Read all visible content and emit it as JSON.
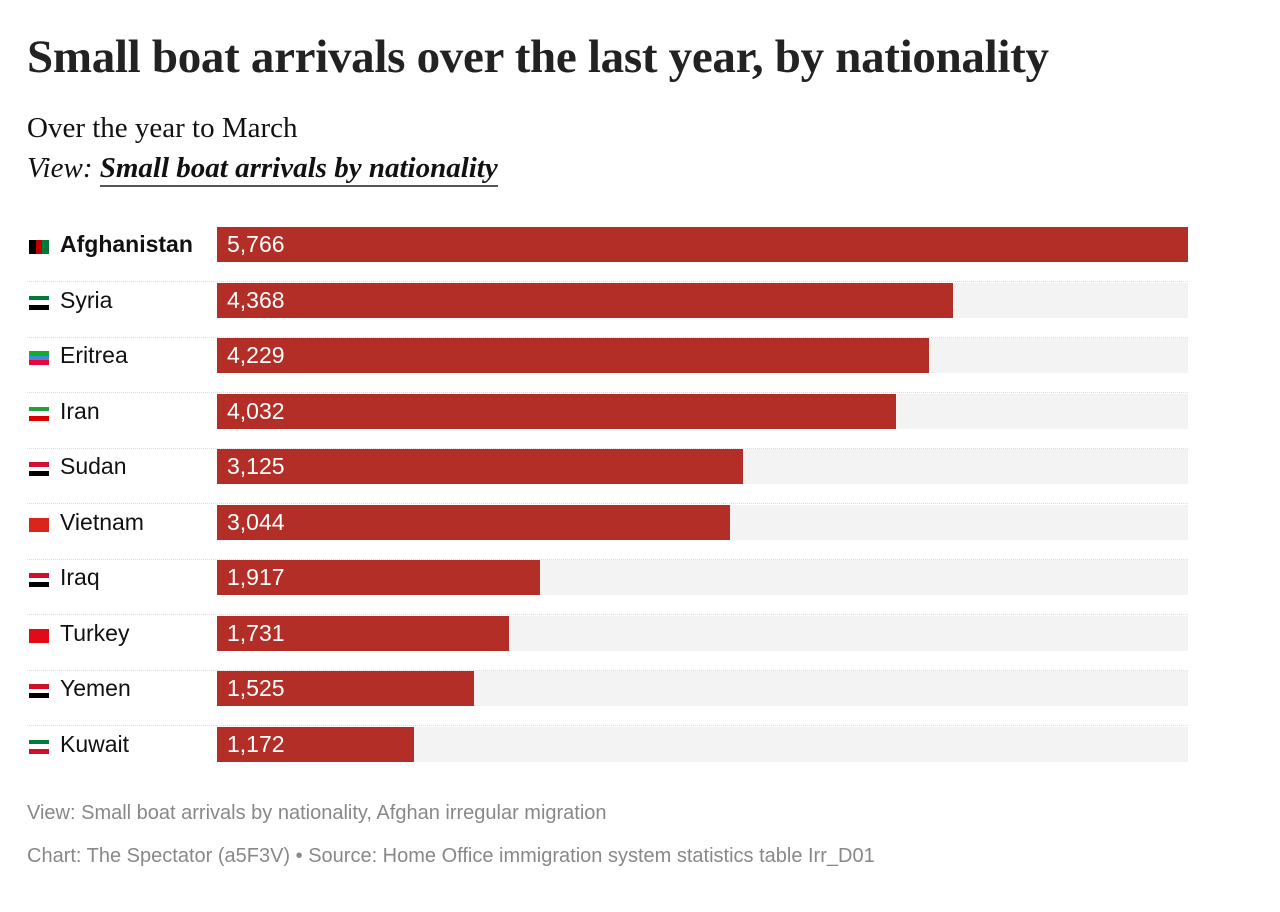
{
  "title": "Small boat arrivals over the last year, by nationality",
  "subtitle": "Over the year to March",
  "view_prefix": "View:",
  "view_link": "Small boat arrivals by nationality",
  "footer": {
    "views": "View: Small boat arrivals by nationality, Afghan irregular migration",
    "source": "Chart: The Spectator (a5F3V) • Source: Home Office immigration system statistics table Irr_D01"
  },
  "colors": {
    "bar": "#b22e27",
    "track": "#f3f3f3"
  },
  "chart_data": {
    "type": "bar",
    "orientation": "horizontal",
    "title": "Small boat arrivals over the last year, by nationality",
    "subtitle": "Over the year to March",
    "categories": [
      "Afghanistan",
      "Syria",
      "Eritrea",
      "Iran",
      "Sudan",
      "Vietnam",
      "Iraq",
      "Turkey",
      "Yemen",
      "Kuwait"
    ],
    "values": [
      5766,
      4368,
      4229,
      4032,
      3125,
      3044,
      1917,
      1731,
      1525,
      1172
    ],
    "labels": [
      "5,766",
      "4,368",
      "4,229",
      "4,032",
      "3,125",
      "3,044",
      "1,917",
      "1,731",
      "1,525",
      "1,172"
    ],
    "xlim": [
      0,
      5766
    ],
    "flags": [
      {
        "dir": "row",
        "stripes": [
          "#000000",
          "#be0000",
          "#007a36"
        ]
      },
      {
        "dir": "column",
        "stripes": [
          "#007a3d",
          "#ffffff",
          "#000000"
        ]
      },
      {
        "dir": "column",
        "stripes": [
          "#12ad2b",
          "#4189dd",
          "#ea0437"
        ]
      },
      {
        "dir": "column",
        "stripes": [
          "#239f40",
          "#ffffff",
          "#da0000"
        ]
      },
      {
        "dir": "column",
        "stripes": [
          "#d21034",
          "#ffffff",
          "#000000"
        ]
      },
      {
        "dir": "column",
        "stripes": [
          "#da251d",
          "#da251d",
          "#da251d"
        ]
      },
      {
        "dir": "column",
        "stripes": [
          "#ce1126",
          "#ffffff",
          "#000000"
        ]
      },
      {
        "dir": "column",
        "stripes": [
          "#e30a17",
          "#e30a17",
          "#e30a17"
        ]
      },
      {
        "dir": "column",
        "stripes": [
          "#ce1126",
          "#ffffff",
          "#000000"
        ]
      },
      {
        "dir": "column",
        "stripes": [
          "#007a3d",
          "#ffffff",
          "#ce1126"
        ]
      }
    ]
  }
}
